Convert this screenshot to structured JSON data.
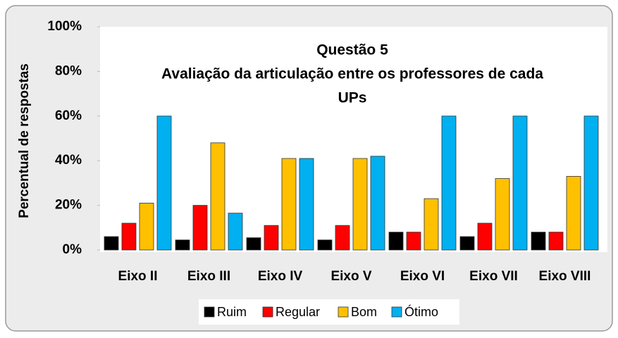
{
  "chart_data": {
    "type": "bar",
    "title": [
      "Questão 5",
      "Avaliação da articulação entre os professores de cada",
      "UPs"
    ],
    "y_label": "Percentual de respostas",
    "categories": [
      "Eixo II",
      "Eixo III",
      "Eixo IV",
      "Eixo V",
      "Eixo VI",
      "Eixo VII",
      "Eixo VIII"
    ],
    "series": [
      {
        "name": "Ruim",
        "color": "#000000",
        "values": [
          6,
          4.5,
          5.5,
          4.5,
          8,
          6,
          8
        ]
      },
      {
        "name": "Regular",
        "color": "#ff0000",
        "values": [
          12,
          20,
          11,
          11,
          8,
          12,
          8
        ]
      },
      {
        "name": "Bom",
        "color": "#ffc000",
        "values": [
          21,
          48,
          41,
          41,
          23,
          32,
          33
        ]
      },
      {
        "name": "Ótimo",
        "color": "#00b0f0",
        "values": [
          60,
          16.5,
          41,
          42,
          60,
          60,
          60
        ]
      }
    ],
    "ylim": [
      0,
      100
    ],
    "yticks": [
      {
        "value": 0,
        "label": "0%"
      },
      {
        "value": 20,
        "label": "20%"
      },
      {
        "value": 40,
        "label": "40%"
      },
      {
        "value": 60,
        "label": "60%"
      },
      {
        "value": 80,
        "label": "80%"
      },
      {
        "value": 100,
        "label": "100%"
      }
    ],
    "legend": "bottom"
  }
}
